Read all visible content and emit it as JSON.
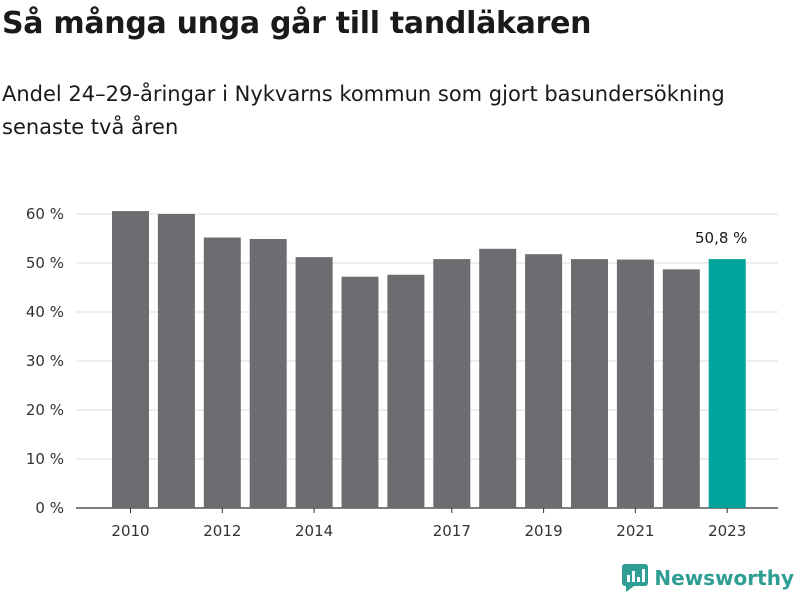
{
  "title": "Så många unga går till tandläkaren",
  "subtitle": "Andel 24–29-åringar i Nykvarns kommun som gjort basundersökning senaste två åren",
  "brand": {
    "name": "Newsworthy",
    "color": "#2e9d93"
  },
  "colors": {
    "bar": "#6d6c71",
    "highlight": "#00a39a",
    "grid": "#dcdcdc",
    "axis": "#333333"
  },
  "chart_data": {
    "type": "bar",
    "categories": [
      "2010",
      "2011",
      "2012",
      "2013",
      "2014",
      "2015",
      "2016",
      "2017",
      "2018",
      "2019",
      "2020",
      "2021",
      "2022",
      "2023"
    ],
    "x_tick_labels": [
      "2010",
      "",
      "2012",
      "",
      "2014",
      "",
      "",
      "2017",
      "",
      "2019",
      "",
      "2021",
      "",
      "2023"
    ],
    "values": [
      60.6,
      60.0,
      55.2,
      54.9,
      51.2,
      47.2,
      47.6,
      50.8,
      52.9,
      51.8,
      50.8,
      50.7,
      48.7,
      50.8
    ],
    "highlight_index": 13,
    "annotation": "50,8 %",
    "yticks": [
      "0 %",
      "10 %",
      "20 %",
      "30 %",
      "40 %",
      "50 %",
      "60 %"
    ],
    "ylim": [
      0,
      60
    ],
    "grid": true
  }
}
